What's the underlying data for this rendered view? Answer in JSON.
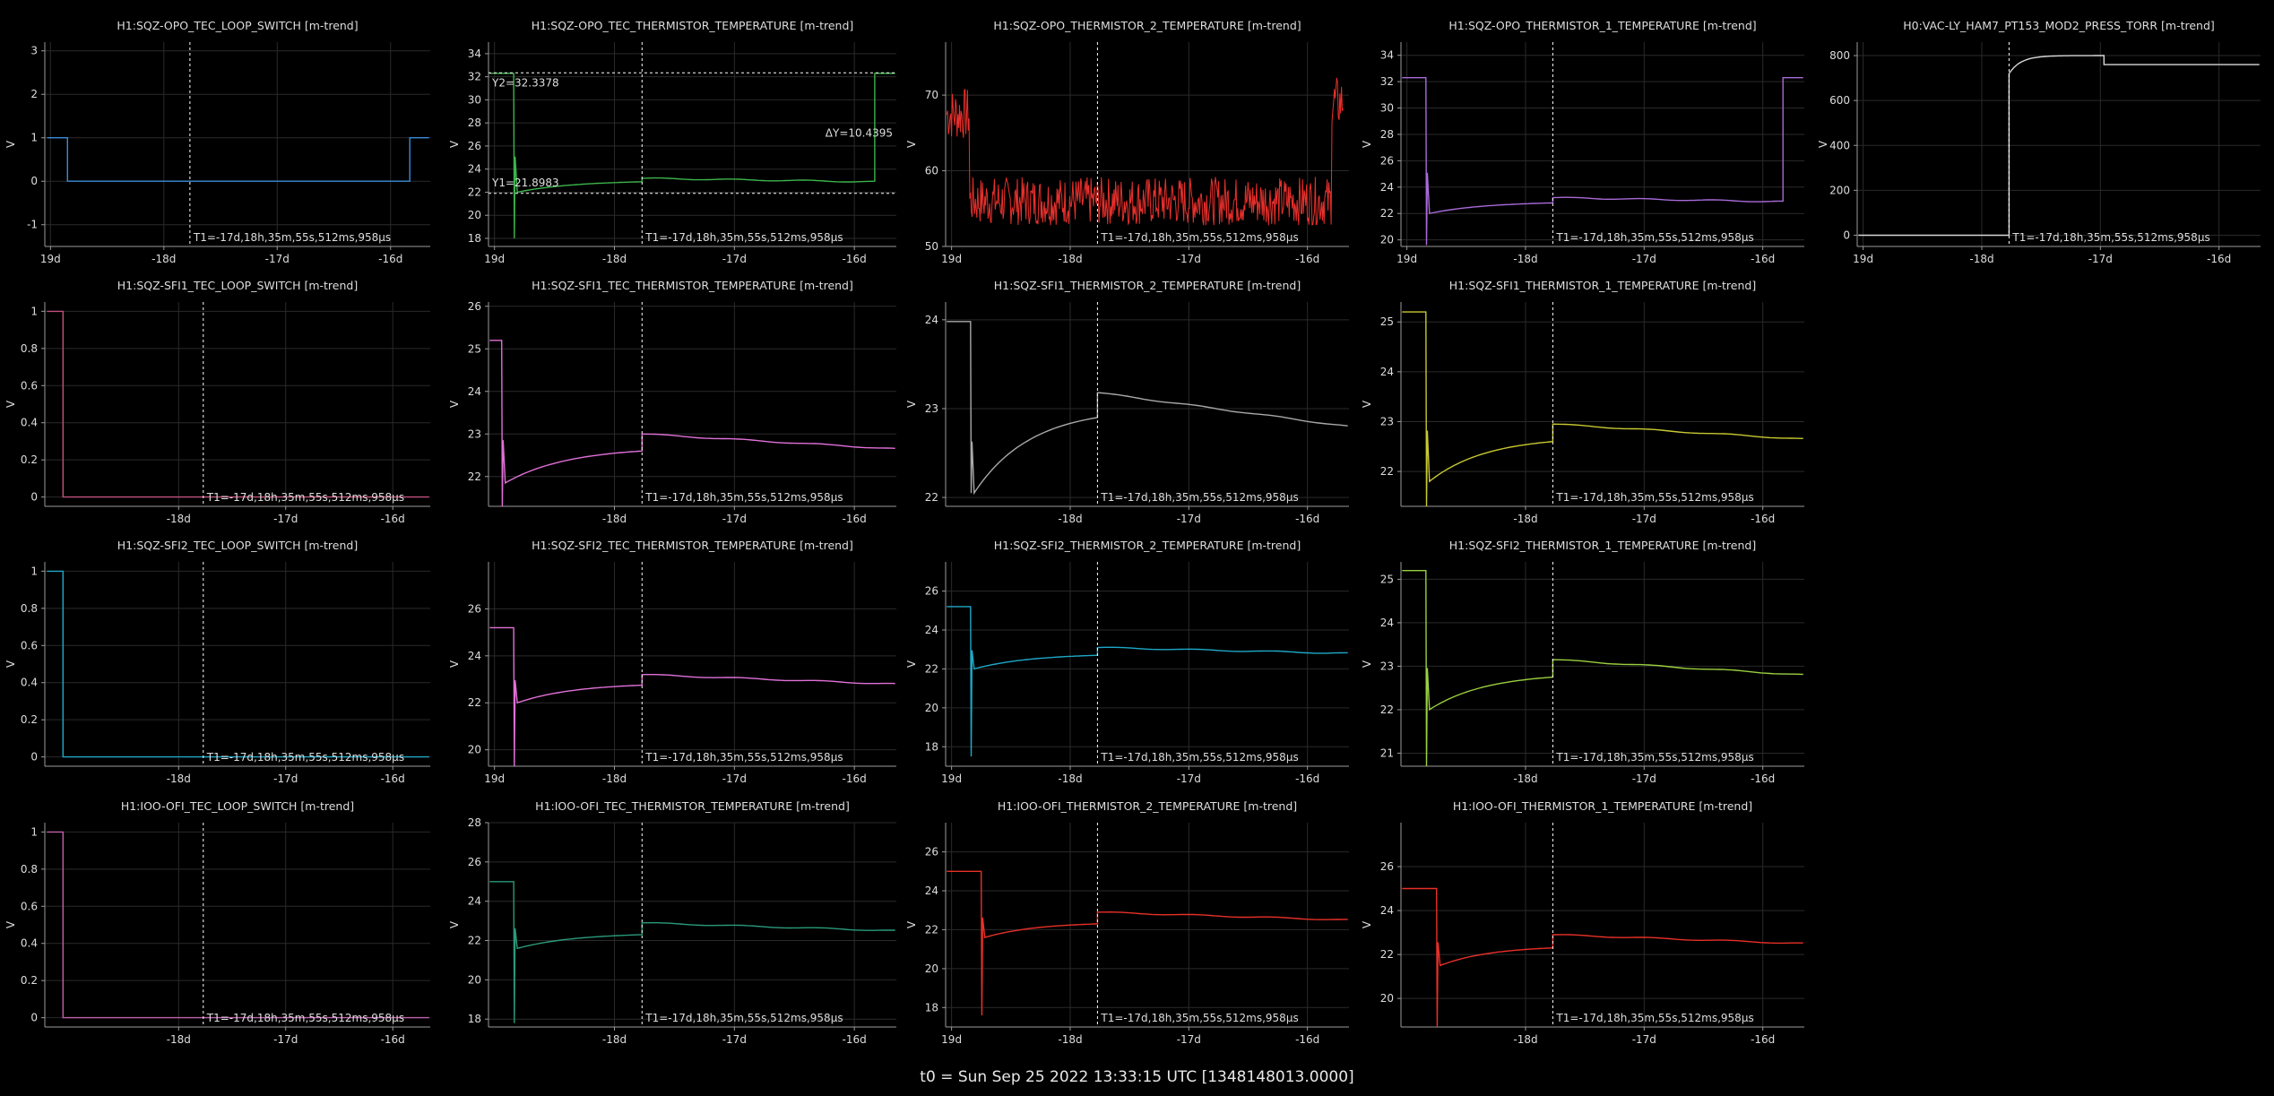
{
  "footer": "t0 = Sun Sep 25 2022 13:33:15 UTC [1348148013.0000]",
  "colors": {
    "background": "#000000",
    "grid": "#2a2a2a",
    "axis": "#9a9a9a",
    "text": "#dddddd",
    "cursor": "#ffffff"
  },
  "chart_data": [
    {
      "type": "line",
      "title": "H1:SQZ-OPO_TEC_LOOP_SWITCH [m-trend]",
      "ylabel": "V",
      "ylim": [
        -1.5,
        3.2
      ],
      "yticks": [
        -1,
        0,
        1,
        2,
        3
      ],
      "xlim": [
        -19.05,
        -15.65
      ],
      "xticks": [
        -19,
        -18,
        -17,
        -16
      ],
      "xtick_labels": [
        "19d",
        "-18d",
        "-17d",
        "-16d"
      ],
      "color": "#3a8bd6",
      "cursor": -17.77,
      "cursor_label": "T1=-17d,18h,35m,55s,512ms,958μs",
      "shape": "switch",
      "base": 0,
      "high": 1,
      "drop_at": -18.85,
      "rise_at": -15.83
    },
    {
      "type": "line",
      "title": "H1:SQZ-OPO_TEC_THERMISTOR_TEMPERATURE [m-trend]",
      "ylabel": "V",
      "ylim": [
        17.3,
        35
      ],
      "yticks": [
        18,
        20,
        22,
        24,
        26,
        28,
        30,
        32,
        34
      ],
      "xlim": [
        -19.05,
        -15.65
      ],
      "xticks": [
        -19,
        -18,
        -17,
        -16
      ],
      "xtick_labels": [
        "19d",
        "-18d",
        "-17d",
        "-16d"
      ],
      "color": "#3cb44b",
      "cursor": -17.77,
      "cursor_label": "T1=-17d,18h,35m,55s,512ms,958μs",
      "shape": "temp",
      "drop_at": -18.84,
      "start": 32.3,
      "dip": 18.0,
      "y0": 22.0,
      "y1": 22.9,
      "y2": 23.2,
      "y3": 22.9,
      "end": 32.3,
      "end_at": -15.83,
      "hline1": 32.3378,
      "hline2": 21.8983,
      "hline1_label": "Y2=32.3378",
      "hline2_label": "Y1=21.8983",
      "delta_label": "ΔY=10.4395"
    },
    {
      "type": "line",
      "title": "H1:SQZ-OPO_THERMISTOR_2_TEMPERATURE [m-trend]",
      "ylabel": "V",
      "ylim": [
        50,
        77
      ],
      "yticks": [
        50,
        60,
        70
      ],
      "xlim": [
        -19.05,
        -15.65
      ],
      "xticks": [
        -19,
        -18,
        -17,
        -16
      ],
      "xtick_labels": [
        "19d",
        "-18d",
        "-17d",
        "-16d"
      ],
      "color": "#e8302c",
      "cursor": -17.77,
      "cursor_label": "T1=-17d,18h,35m,55s,512ms,958μs",
      "shape": "noisy",
      "start": 67.5,
      "mid": 56.0,
      "end": 69.0,
      "drop_at": -18.85,
      "rise_at": -15.8
    },
    {
      "type": "line",
      "title": "H1:SQZ-OPO_THERMISTOR_1_TEMPERATURE [m-trend]",
      "ylabel": "V",
      "ylim": [
        19.5,
        35
      ],
      "yticks": [
        20,
        22,
        24,
        26,
        28,
        30,
        32,
        34
      ],
      "xlim": [
        -19.05,
        -15.65
      ],
      "xticks": [
        -19,
        -18,
        -17,
        -16
      ],
      "xtick_labels": [
        "19d",
        "-18d",
        "-17d",
        "-16d"
      ],
      "color": "#a86ad8",
      "cursor": -17.77,
      "cursor_label": "T1=-17d,18h,35m,55s,512ms,958μs",
      "shape": "temp",
      "drop_at": -18.84,
      "start": 32.3,
      "dip": 19.6,
      "y0": 22.0,
      "y1": 22.8,
      "y2": 23.2,
      "y3": 22.9,
      "end": 32.3,
      "end_at": -15.83
    },
    {
      "type": "line",
      "title": "H0:VAC-LY_HAM7_PT153_MOD2_PRESS_TORR [m-trend]",
      "ylabel": "V",
      "ylim": [
        -50,
        860
      ],
      "yticks": [
        0,
        200,
        400,
        600,
        800
      ],
      "xlim": [
        -19.05,
        -15.65
      ],
      "xticks": [
        -19,
        -18,
        -17,
        -16
      ],
      "xtick_labels": [
        "19d",
        "-18d",
        "-17d",
        "-16d"
      ],
      "color": "#d8d8d8",
      "cursor": -17.77,
      "cursor_label": "T1=-17d,18h,35m,55s,512ms,958μs",
      "shape": "press",
      "base": 0,
      "rise_at": -17.77,
      "peak": 800,
      "settle_at": -16.97,
      "settle": 760
    },
    {
      "type": "line",
      "title": "H1:SQZ-SFI1_TEC_LOOP_SWITCH [m-trend]",
      "ylabel": "V",
      "ylim": [
        -0.05,
        1.05
      ],
      "yticks": [
        0,
        0.2,
        0.4,
        0.6,
        0.8,
        1
      ],
      "xlim": [
        -19.25,
        -15.65
      ],
      "xticks": [
        -18,
        -17,
        -16
      ],
      "xtick_labels": [
        "-18d",
        "-17d",
        "-16d"
      ],
      "color": "#c0507a",
      "cursor": -17.77,
      "cursor_label": "T1=-17d,18h,35m,55s,512ms,958μs",
      "shape": "switch",
      "base": 0,
      "high": 1,
      "drop_at": -19.08,
      "rise_at": 99
    },
    {
      "type": "line",
      "title": "H1:SQZ-SFI1_TEC_THERMISTOR_TEMPERATURE [m-trend]",
      "ylabel": "V",
      "ylim": [
        21.3,
        26.1
      ],
      "yticks": [
        22,
        23,
        24,
        25,
        26
      ],
      "xlim": [
        -19.05,
        -15.65
      ],
      "xticks": [
        -18,
        -17,
        -16
      ],
      "xtick_labels": [
        "-18d",
        "-17d",
        "-16d"
      ],
      "color": "#e070d8",
      "cursor": -17.77,
      "cursor_label": "T1=-17d,18h,35m,55s,512ms,958μs",
      "shape": "temp",
      "drop_at": -18.94,
      "start": 25.2,
      "dip": 21.3,
      "y0": 21.85,
      "y1": 22.6,
      "y2": 23.0,
      "y3": 22.65,
      "end": 22.7,
      "end_at": 99
    },
    {
      "type": "line",
      "title": "H1:SQZ-SFI1_THERMISTOR_2_TEMPERATURE [m-trend]",
      "ylabel": "V",
      "ylim": [
        21.9,
        24.2
      ],
      "yticks": [
        22,
        23,
        24
      ],
      "xlim": [
        -19.05,
        -15.65
      ],
      "xticks": [
        -18,
        -17,
        -16
      ],
      "xtick_labels": [
        "-18d",
        "-17d",
        "-16d"
      ],
      "color": "#a8a8a8",
      "cursor": -17.77,
      "cursor_label": "T1=-17d,18h,35m,55s,512ms,958μs",
      "shape": "temp",
      "drop_at": -18.84,
      "start": 23.98,
      "dip": 22.05,
      "y0": 22.05,
      "y1": 22.9,
      "y2": 23.18,
      "y3": 22.8,
      "end": 22.85,
      "end_at": 99
    },
    {
      "type": "line",
      "title": "H1:SQZ-SFI1_THERMISTOR_1_TEMPERATURE [m-trend]",
      "ylabel": "V",
      "ylim": [
        21.3,
        25.4
      ],
      "yticks": [
        22,
        23,
        24,
        25
      ],
      "xlim": [
        -19.05,
        -15.65
      ],
      "xticks": [
        -18,
        -17,
        -16
      ],
      "xtick_labels": [
        "-18d",
        "-17d",
        "-16d"
      ],
      "color": "#c8c832",
      "cursor": -17.77,
      "cursor_label": "T1=-17d,18h,35m,55s,512ms,958μs",
      "shape": "temp",
      "drop_at": -18.84,
      "start": 25.2,
      "dip": 21.3,
      "y0": 21.8,
      "y1": 22.6,
      "y2": 22.95,
      "y3": 22.65,
      "end": 22.7,
      "end_at": 99
    },
    {
      "type": "line",
      "title": "H1:SQZ-SFI2_TEC_LOOP_SWITCH [m-trend]",
      "ylabel": "V",
      "ylim": [
        -0.05,
        1.05
      ],
      "yticks": [
        0,
        0.2,
        0.4,
        0.6,
        0.8,
        1
      ],
      "xlim": [
        -19.25,
        -15.65
      ],
      "xticks": [
        -18,
        -17,
        -16
      ],
      "xtick_labels": [
        "-18d",
        "-17d",
        "-16d"
      ],
      "color": "#1fa8c8",
      "cursor": -17.77,
      "cursor_label": "T1=-17d,18h,35m,55s,512ms,958μs",
      "shape": "switch",
      "base": 0,
      "high": 1,
      "drop_at": -19.08,
      "rise_at": 99
    },
    {
      "type": "line",
      "title": "H1:SQZ-SFI2_TEC_THERMISTOR_TEMPERATURE [m-trend]",
      "ylabel": "V",
      "ylim": [
        19.3,
        28
      ],
      "yticks": [
        20,
        22,
        24,
        26
      ],
      "xlim": [
        -19.05,
        -15.65
      ],
      "xticks": [
        -19,
        -18,
        -17,
        -16
      ],
      "xtick_labels": [
        "19d",
        "-18d",
        "-17d",
        "-16d"
      ],
      "color": "#e070d8",
      "cursor": -17.77,
      "cursor_label": "T1=-17d,18h,35m,55s,512ms,958μs",
      "shape": "temp",
      "drop_at": -18.84,
      "start": 25.2,
      "dip": 19.3,
      "y0": 22.0,
      "y1": 22.75,
      "y2": 23.2,
      "y3": 22.8,
      "end": 22.8,
      "end_at": 99
    },
    {
      "type": "line",
      "title": "H1:SQZ-SFI2_THERMISTOR_2_TEMPERATURE [m-trend]",
      "ylabel": "V",
      "ylim": [
        17,
        27.5
      ],
      "yticks": [
        18,
        20,
        22,
        24,
        26
      ],
      "xlim": [
        -19.05,
        -15.65
      ],
      "xticks": [
        -19,
        -18,
        -17,
        -16
      ],
      "xtick_labels": [
        "19d",
        "-18d",
        "-17d",
        "-16d"
      ],
      "color": "#1fa8c8",
      "cursor": -17.77,
      "cursor_label": "T1=-17d,18h,35m,55s,512ms,958μs",
      "shape": "temp",
      "drop_at": -18.84,
      "start": 25.2,
      "dip": 17.5,
      "y0": 22.0,
      "y1": 22.7,
      "y2": 23.1,
      "y3": 22.8,
      "end": 22.8,
      "end_at": 99
    },
    {
      "type": "line",
      "title": "H1:SQZ-SFI2_THERMISTOR_1_TEMPERATURE [m-trend]",
      "ylabel": "V",
      "ylim": [
        20.7,
        25.4
      ],
      "yticks": [
        21,
        22,
        23,
        24,
        25
      ],
      "xlim": [
        -19.05,
        -15.65
      ],
      "xticks": [
        -18,
        -17,
        -16
      ],
      "xtick_labels": [
        "-18d",
        "-17d",
        "-16d"
      ],
      "color": "#9ad040",
      "cursor": -17.77,
      "cursor_label": "T1=-17d,18h,35m,55s,512ms,958μs",
      "shape": "temp",
      "drop_at": -18.84,
      "start": 25.2,
      "dip": 20.7,
      "y0": 22.0,
      "y1": 22.75,
      "y2": 23.15,
      "y3": 22.8,
      "end": 22.8,
      "end_at": 99
    },
    {
      "type": "line",
      "title": "H1:IOO-OFI_TEC_LOOP_SWITCH [m-trend]",
      "ylabel": "V",
      "ylim": [
        -0.05,
        1.05
      ],
      "yticks": [
        0,
        0.2,
        0.4,
        0.6,
        0.8,
        1
      ],
      "xlim": [
        -19.25,
        -15.65
      ],
      "xticks": [
        -18,
        -17,
        -16
      ],
      "xtick_labels": [
        "-18d",
        "-17d",
        "-16d"
      ],
      "color": "#c060a8",
      "cursor": -17.77,
      "cursor_label": "T1=-17d,18h,35m,55s,512ms,958μs",
      "shape": "switch",
      "base": 0,
      "high": 1,
      "drop_at": -19.08,
      "rise_at": 99
    },
    {
      "type": "line",
      "title": "H1:IOO-OFI_TEC_THERMISTOR_TEMPERATURE [m-trend]",
      "ylabel": "V",
      "ylim": [
        17.6,
        28
      ],
      "yticks": [
        18,
        20,
        22,
        24,
        26,
        28
      ],
      "xlim": [
        -19.05,
        -15.65
      ],
      "xticks": [
        -18,
        -17,
        -16
      ],
      "xtick_labels": [
        "-18d",
        "-17d",
        "-16d"
      ],
      "color": "#2a9a7a",
      "cursor": -17.77,
      "cursor_label": "T1=-17d,18h,35m,55s,512ms,958μs",
      "shape": "temp",
      "drop_at": -18.84,
      "start": 25.0,
      "dip": 17.8,
      "y0": 21.6,
      "y1": 22.3,
      "y2": 22.9,
      "y3": 22.5,
      "end": 22.5,
      "end_at": 99
    },
    {
      "type": "line",
      "title": "H1:IOO-OFI_THERMISTOR_2_TEMPERATURE [m-trend]",
      "ylabel": "V",
      "ylim": [
        17,
        27.5
      ],
      "yticks": [
        18,
        20,
        22,
        24,
        26
      ],
      "xlim": [
        -19.05,
        -15.65
      ],
      "xticks": [
        -19,
        -18,
        -17,
        -16
      ],
      "xtick_labels": [
        "19d",
        "-18d",
        "-17d",
        "-16d"
      ],
      "color": "#e83028",
      "cursor": -17.77,
      "cursor_label": "T1=-17d,18h,35m,55s,512ms,958μs",
      "shape": "temp",
      "drop_at": -18.75,
      "start": 25.0,
      "dip": 17.6,
      "y0": 21.6,
      "y1": 22.3,
      "y2": 22.9,
      "y3": 22.5,
      "end": 22.5,
      "end_at": 99
    },
    {
      "type": "line",
      "title": "H1:IOO-OFI_THERMISTOR_1_TEMPERATURE [m-trend]",
      "ylabel": "V",
      "ylim": [
        18.7,
        28
      ],
      "yticks": [
        20,
        22,
        24,
        26
      ],
      "xlim": [
        -19.05,
        -15.65
      ],
      "xticks": [
        -18,
        -17,
        -16
      ],
      "xtick_labels": [
        "-18d",
        "-17d",
        "-16d"
      ],
      "color": "#e83028",
      "cursor": -17.77,
      "cursor_label": "T1=-17d,18h,35m,55s,512ms,958μs",
      "shape": "temp",
      "drop_at": -18.75,
      "start": 25.0,
      "dip": 18.7,
      "y0": 21.5,
      "y1": 22.3,
      "y2": 22.9,
      "y3": 22.5,
      "end": 22.5,
      "end_at": 99
    }
  ]
}
